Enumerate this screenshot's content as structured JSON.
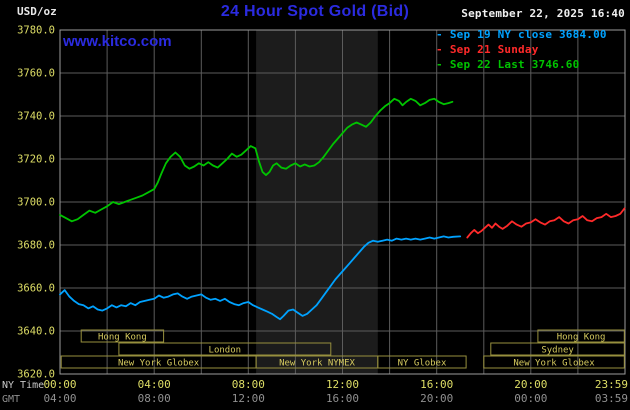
{
  "header": {
    "units": "USD/oz",
    "title": "24 Hour Spot Gold (Bid)",
    "datetime": "September 22, 2025 16:40"
  },
  "watermark": "www.kitco.com",
  "legend": [
    {
      "id": "sep19",
      "marker": "-",
      "label": "Sep 19 NY close 3684.00",
      "color": "#00a2ff"
    },
    {
      "id": "sep21",
      "marker": "-",
      "label": "Sep 21 Sunday",
      "color": "#ff2a2a"
    },
    {
      "id": "sep22",
      "marker": "-",
      "label": "Sep 22 Last 3746.60",
      "color": "#00c400"
    }
  ],
  "colors": {
    "background": "#000000",
    "grid": "#5c5c5c",
    "frame": "#9c9c9c",
    "title_blue": "#2b2be0",
    "watermark_blue": "#2b2be0",
    "date_text": "#f0f0f0",
    "units_text": "#e8e8e8",
    "axis_yellow": "#dede66",
    "gmt_text": "#909090",
    "nytime_text": "#c8c8c8",
    "session_border": "#97903e",
    "session_text": "#d4c95e",
    "band": "#1c1c1c"
  },
  "axes": {
    "ny_time_label": "NY Time",
    "gmt_label": "GMT",
    "y_tick_labels": [
      "3780.0",
      "3760.0",
      "3740.0",
      "3720.0",
      "3700.0",
      "3680.0",
      "3660.0",
      "3640.0",
      "3620.0"
    ],
    "x_ticks": [
      {
        "t": 0,
        "ny": "00:00",
        "gmt": "04:00"
      },
      {
        "t": 4,
        "ny": "04:00",
        "gmt": "08:00"
      },
      {
        "t": 8,
        "ny": "08:00",
        "gmt": "12:00"
      },
      {
        "t": 12,
        "ny": "12:00",
        "gmt": "16:00"
      },
      {
        "t": 16,
        "ny": "16:00",
        "gmt": "20:00"
      },
      {
        "t": 20,
        "ny": "20:00",
        "gmt": "00:00"
      },
      {
        "t": 23.983,
        "ny": "23:59",
        "gmt": "03:59"
      }
    ]
  },
  "sessions": {
    "rows": [
      [
        {
          "label": "Hong Kong",
          "start": 0.9,
          "end": 4.4
        },
        {
          "label": "Hong Kong",
          "start": 20.3,
          "end": 23.97
        }
      ],
      [
        {
          "label": "London",
          "start": 2.5,
          "end": 11.5
        },
        {
          "label": "Sydney",
          "start": 18.3,
          "end": 23.97
        }
      ],
      [
        {
          "label": "New York Globex",
          "start": 0.05,
          "end": 8.33
        },
        {
          "label": "New York NYMEX",
          "start": 8.33,
          "end": 13.5
        },
        {
          "label": "NY Globex",
          "start": 13.5,
          "end": 17.25
        },
        {
          "label": "New York Globex",
          "start": 18.0,
          "end": 23.97
        }
      ]
    ]
  },
  "chart_data": {
    "type": "line",
    "title": "24 Hour Spot Gold (Bid)",
    "xlabel": "NY Time",
    "ylabel": "USD/oz",
    "xlim": [
      0,
      24
    ],
    "ylim": [
      3620,
      3780
    ],
    "grid": true,
    "legend_position": "top-right",
    "band": {
      "start": 8.33,
      "end": 13.5
    },
    "series": [
      {
        "id": "sep19",
        "name": "Sep 19 NY close 3684.00",
        "color": "#00a2ff",
        "close": 3684.0,
        "points": [
          [
            0,
            3657
          ],
          [
            0.2,
            3659
          ],
          [
            0.4,
            3656
          ],
          [
            0.6,
            3654
          ],
          [
            0.8,
            3652.5
          ],
          [
            1,
            3652
          ],
          [
            1.2,
            3650.5
          ],
          [
            1.4,
            3651.5
          ],
          [
            1.6,
            3650
          ],
          [
            1.8,
            3649.5
          ],
          [
            2,
            3650.5
          ],
          [
            2.2,
            3652
          ],
          [
            2.4,
            3651
          ],
          [
            2.6,
            3652
          ],
          [
            2.8,
            3651.5
          ],
          [
            3,
            3653
          ],
          [
            3.2,
            3652
          ],
          [
            3.4,
            3653.5
          ],
          [
            3.6,
            3654
          ],
          [
            3.8,
            3654.5
          ],
          [
            4,
            3655
          ],
          [
            4.2,
            3656.5
          ],
          [
            4.4,
            3655.5
          ],
          [
            4.6,
            3656
          ],
          [
            4.8,
            3657
          ],
          [
            5,
            3657.5
          ],
          [
            5.2,
            3656
          ],
          [
            5.4,
            3655
          ],
          [
            5.6,
            3656
          ],
          [
            5.8,
            3656.5
          ],
          [
            6,
            3657
          ],
          [
            6.2,
            3655.5
          ],
          [
            6.4,
            3654.5
          ],
          [
            6.6,
            3655
          ],
          [
            6.8,
            3654
          ],
          [
            7,
            3655
          ],
          [
            7.2,
            3653.5
          ],
          [
            7.4,
            3652.5
          ],
          [
            7.6,
            3652
          ],
          [
            7.8,
            3653
          ],
          [
            8,
            3653.5
          ],
          [
            8.2,
            3652
          ],
          [
            8.4,
            3651
          ],
          [
            8.6,
            3650
          ],
          [
            8.8,
            3649
          ],
          [
            9,
            3648
          ],
          [
            9.2,
            3646.5
          ],
          [
            9.35,
            3645.5
          ],
          [
            9.5,
            3647
          ],
          [
            9.7,
            3649.5
          ],
          [
            9.9,
            3650
          ],
          [
            10.1,
            3648.5
          ],
          [
            10.3,
            3647
          ],
          [
            10.5,
            3648
          ],
          [
            10.7,
            3650
          ],
          [
            10.9,
            3652
          ],
          [
            11.1,
            3655
          ],
          [
            11.3,
            3658
          ],
          [
            11.5,
            3661
          ],
          [
            11.7,
            3664
          ],
          [
            11.9,
            3666.5
          ],
          [
            12.1,
            3669
          ],
          [
            12.3,
            3671.5
          ],
          [
            12.5,
            3674
          ],
          [
            12.7,
            3676.5
          ],
          [
            12.9,
            3679
          ],
          [
            13.1,
            3681
          ],
          [
            13.3,
            3682
          ],
          [
            13.5,
            3681.5
          ],
          [
            13.7,
            3682
          ],
          [
            13.9,
            3682.5
          ],
          [
            14.1,
            3682
          ],
          [
            14.3,
            3683
          ],
          [
            14.5,
            3682.5
          ],
          [
            14.7,
            3683
          ],
          [
            14.9,
            3682.5
          ],
          [
            15.1,
            3683
          ],
          [
            15.3,
            3682.5
          ],
          [
            15.5,
            3683
          ],
          [
            15.7,
            3683.5
          ],
          [
            15.9,
            3683
          ],
          [
            16.1,
            3683.5
          ],
          [
            16.3,
            3684
          ],
          [
            16.5,
            3683.5
          ],
          [
            16.7,
            3683.8
          ],
          [
            17,
            3684
          ]
        ]
      },
      {
        "id": "sep21",
        "name": "Sep 21 Sunday",
        "color": "#ff2a2a",
        "points": [
          [
            17.3,
            3683.5
          ],
          [
            17.45,
            3685.5
          ],
          [
            17.6,
            3687
          ],
          [
            17.75,
            3685.5
          ],
          [
            17.9,
            3686.5
          ],
          [
            18.05,
            3688
          ],
          [
            18.2,
            3689.5
          ],
          [
            18.35,
            3688
          ],
          [
            18.5,
            3690
          ],
          [
            18.65,
            3688.5
          ],
          [
            18.8,
            3687.5
          ],
          [
            19,
            3689
          ],
          [
            19.2,
            3691
          ],
          [
            19.4,
            3689.5
          ],
          [
            19.6,
            3688.5
          ],
          [
            19.8,
            3690
          ],
          [
            20,
            3690.5
          ],
          [
            20.2,
            3692
          ],
          [
            20.4,
            3690.5
          ],
          [
            20.6,
            3689.5
          ],
          [
            20.8,
            3691
          ],
          [
            21,
            3691.5
          ],
          [
            21.2,
            3693
          ],
          [
            21.4,
            3691
          ],
          [
            21.6,
            3690
          ],
          [
            21.8,
            3691.5
          ],
          [
            22,
            3692
          ],
          [
            22.2,
            3693.5
          ],
          [
            22.4,
            3691.5
          ],
          [
            22.6,
            3691
          ],
          [
            22.8,
            3692.5
          ],
          [
            23,
            3693
          ],
          [
            23.2,
            3694.5
          ],
          [
            23.4,
            3693
          ],
          [
            23.6,
            3693.5
          ],
          [
            23.8,
            3694.5
          ],
          [
            23.98,
            3697
          ]
        ]
      },
      {
        "id": "sep22",
        "name": "Sep 22 Last 3746.60",
        "color": "#00c400",
        "last": 3746.6,
        "points": [
          [
            0,
            3694
          ],
          [
            0.25,
            3692.5
          ],
          [
            0.5,
            3691
          ],
          [
            0.75,
            3692
          ],
          [
            1,
            3694
          ],
          [
            1.25,
            3696
          ],
          [
            1.5,
            3695
          ],
          [
            1.75,
            3696.5
          ],
          [
            2,
            3698
          ],
          [
            2.25,
            3700
          ],
          [
            2.5,
            3699
          ],
          [
            2.75,
            3700
          ],
          [
            3,
            3701
          ],
          [
            3.25,
            3702
          ],
          [
            3.5,
            3703
          ],
          [
            3.75,
            3704.5
          ],
          [
            4,
            3706
          ],
          [
            4.15,
            3709
          ],
          [
            4.3,
            3713
          ],
          [
            4.5,
            3718
          ],
          [
            4.7,
            3721
          ],
          [
            4.9,
            3723
          ],
          [
            5.1,
            3721
          ],
          [
            5.3,
            3717
          ],
          [
            5.5,
            3715.5
          ],
          [
            5.7,
            3716.5
          ],
          [
            5.9,
            3718
          ],
          [
            6.1,
            3717
          ],
          [
            6.3,
            3718.5
          ],
          [
            6.5,
            3717
          ],
          [
            6.7,
            3716
          ],
          [
            6.9,
            3718
          ],
          [
            7.1,
            3720
          ],
          [
            7.3,
            3722.5
          ],
          [
            7.5,
            3721
          ],
          [
            7.7,
            3722
          ],
          [
            7.9,
            3724
          ],
          [
            8.1,
            3726
          ],
          [
            8.3,
            3725
          ],
          [
            8.45,
            3719
          ],
          [
            8.6,
            3714
          ],
          [
            8.75,
            3712.5
          ],
          [
            8.9,
            3714
          ],
          [
            9.05,
            3717
          ],
          [
            9.2,
            3718
          ],
          [
            9.4,
            3716
          ],
          [
            9.6,
            3715.5
          ],
          [
            9.8,
            3717
          ],
          [
            10,
            3718
          ],
          [
            10.2,
            3716.5
          ],
          [
            10.4,
            3717.5
          ],
          [
            10.6,
            3716.5
          ],
          [
            10.8,
            3717
          ],
          [
            11,
            3718.5
          ],
          [
            11.2,
            3721
          ],
          [
            11.4,
            3724
          ],
          [
            11.6,
            3727
          ],
          [
            11.8,
            3729.5
          ],
          [
            12,
            3732
          ],
          [
            12.2,
            3734.5
          ],
          [
            12.4,
            3736
          ],
          [
            12.6,
            3737
          ],
          [
            12.8,
            3736
          ],
          [
            13,
            3735
          ],
          [
            13.2,
            3737
          ],
          [
            13.4,
            3740
          ],
          [
            13.6,
            3742.5
          ],
          [
            13.8,
            3744.5
          ],
          [
            14,
            3746
          ],
          [
            14.2,
            3748
          ],
          [
            14.4,
            3747
          ],
          [
            14.55,
            3745
          ],
          [
            14.7,
            3746.5
          ],
          [
            14.9,
            3748
          ],
          [
            15.1,
            3747
          ],
          [
            15.3,
            3745
          ],
          [
            15.5,
            3746
          ],
          [
            15.7,
            3747.5
          ],
          [
            15.9,
            3748
          ],
          [
            16.1,
            3746.5
          ],
          [
            16.3,
            3745.5
          ],
          [
            16.5,
            3746
          ],
          [
            16.67,
            3746.6
          ]
        ]
      }
    ]
  }
}
